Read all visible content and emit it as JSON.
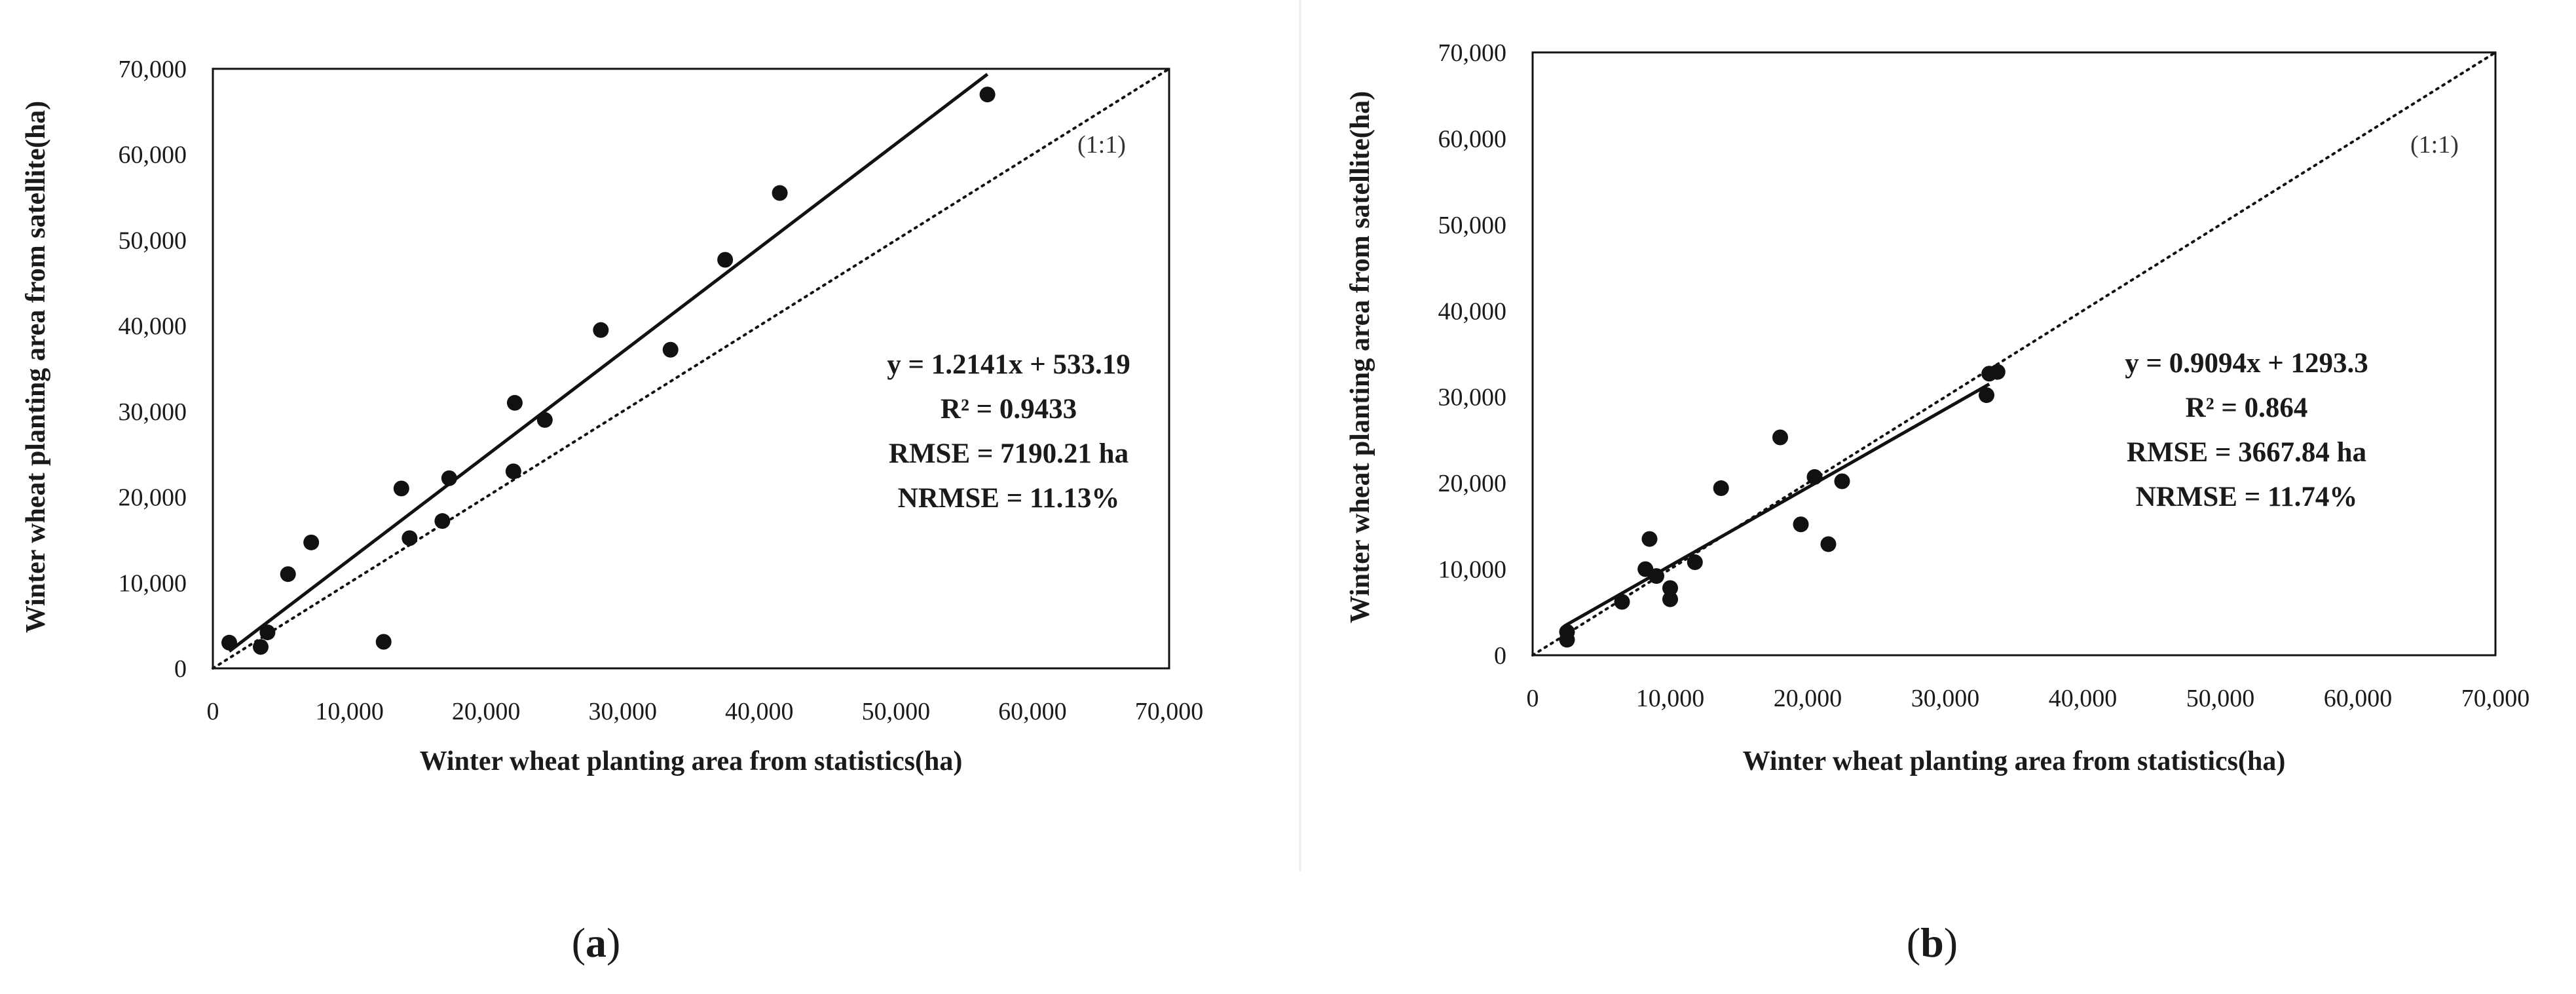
{
  "chart_data": [
    {
      "type": "scatter",
      "panel_label": "a",
      "xlabel": "Winter wheat planting area from statistics(ha)",
      "ylabel": "Winter wheat planting area from satellite(ha)",
      "xlim": [
        0,
        70000
      ],
      "ylim": [
        0,
        70000
      ],
      "x_ticks": [
        "0",
        "10,000",
        "20,000",
        "30,000",
        "40,000",
        "50,000",
        "60,000",
        "70,000"
      ],
      "y_ticks": [
        "0",
        "10,000",
        "20,000",
        "30,000",
        "40,000",
        "50,000",
        "60,000",
        "70,000"
      ],
      "grid": false,
      "points": [
        [
          1200,
          3000
        ],
        [
          3500,
          2500
        ],
        [
          4000,
          4200
        ],
        [
          5500,
          11000
        ],
        [
          7200,
          14700
        ],
        [
          12500,
          3100
        ],
        [
          13800,
          21000
        ],
        [
          14400,
          15200
        ],
        [
          16800,
          17200
        ],
        [
          17300,
          22200
        ],
        [
          22000,
          23000
        ],
        [
          22100,
          31000
        ],
        [
          24300,
          29000
        ],
        [
          28400,
          39500
        ],
        [
          33500,
          37200
        ],
        [
          37500,
          47700
        ],
        [
          41500,
          55500
        ],
        [
          56700,
          67000
        ]
      ],
      "fit": {
        "slope": 1.2141,
        "intercept": 533.19,
        "x_range": [
          1200,
          56700
        ]
      },
      "reference_line_label": "(1:1)",
      "annotation_lines": [
        "y = 1.2141x + 533.19",
        "R² = 0.9433",
        "RMSE = 7190.21 ha",
        "NRMSE = 11.13%"
      ],
      "caption": {
        "open": "(",
        "letter": "a",
        "close": ")"
      }
    },
    {
      "type": "scatter",
      "panel_label": "b",
      "xlabel": "Winter wheat planting area from statistics(ha)",
      "ylabel": "Winter wheat planting area from satellite(ha)",
      "xlim": [
        0,
        70000
      ],
      "ylim": [
        0,
        70000
      ],
      "x_ticks": [
        "0",
        "10,000",
        "20,000",
        "30,000",
        "40,000",
        "50,000",
        "60,000",
        "70,000"
      ],
      "y_ticks": [
        "0",
        "10,000",
        "20,000",
        "30,000",
        "40,000",
        "50,000",
        "60,000",
        "70,000"
      ],
      "grid": false,
      "points": [
        [
          2500,
          1800
        ],
        [
          2500,
          2700
        ],
        [
          6500,
          6200
        ],
        [
          8200,
          10000
        ],
        [
          8500,
          13500
        ],
        [
          9000,
          9200
        ],
        [
          10000,
          6500
        ],
        [
          10000,
          7800
        ],
        [
          11800,
          10800
        ],
        [
          13700,
          19400
        ],
        [
          18000,
          25300
        ],
        [
          19500,
          15200
        ],
        [
          20500,
          20700
        ],
        [
          21500,
          12900
        ],
        [
          22500,
          20200
        ],
        [
          33000,
          30200
        ],
        [
          33200,
          32700
        ],
        [
          33800,
          32900
        ]
      ],
      "fit": {
        "slope": 0.9094,
        "intercept": 1293.3,
        "x_range": [
          2300,
          33200
        ]
      },
      "reference_line_label": "(1:1)",
      "annotation_lines": [
        "y = 0.9094x + 1293.3",
        "R² = 0.864",
        "RMSE = 3667.84 ha",
        "NRMSE = 11.74%"
      ],
      "caption": {
        "open": "(",
        "letter": "b",
        "close": ")"
      }
    }
  ]
}
